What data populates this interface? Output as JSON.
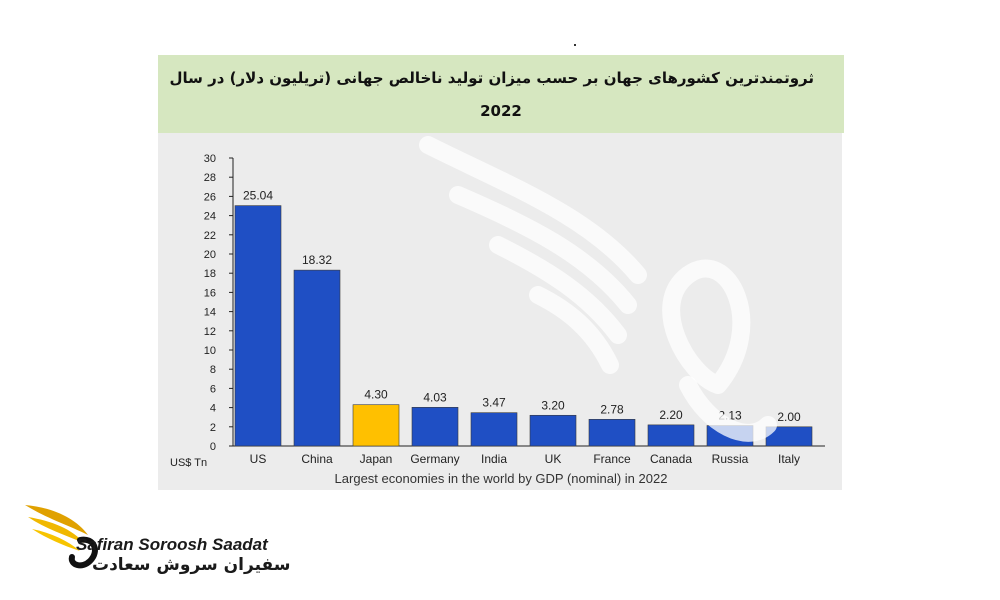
{
  "chart_data": {
    "type": "bar",
    "title": "ثروتمندترین کشورهای جهان بر حسب میزان تولید ناخالص جهانی (تریلیون دلار) در سال",
    "title_year": "2022",
    "caption": "Largest economies in the world by GDP (nominal) in 2022",
    "unit_label": "US$ Tn",
    "categories": [
      "US",
      "China",
      "Japan",
      "Germany",
      "India",
      "UK",
      "France",
      "Canada",
      "Russia",
      "Italy"
    ],
    "values": [
      25.04,
      18.32,
      4.3,
      4.03,
      3.47,
      3.2,
      2.78,
      2.2,
      2.13,
      2.0
    ],
    "value_labels": [
      "25.04",
      "18.32",
      "4.30",
      "4.03",
      "3.47",
      "3.20",
      "2.78",
      "2.20",
      "2.13",
      "2.00"
    ],
    "highlight_category": "Japan",
    "yticks": [
      0,
      2,
      4,
      6,
      8,
      10,
      12,
      14,
      16,
      18,
      20,
      22,
      24,
      26,
      28,
      30
    ],
    "ylim": [
      0,
      30
    ],
    "grid": false,
    "colors": {
      "bar": "#1f4fc4",
      "highlight": "#ffc000",
      "title_band": "#d6e7c0",
      "plot_bg": "#ececec"
    }
  },
  "brand": {
    "name_en": "Safiran Soroosh Saadat",
    "name_fa": "سفیران سروش سعادت"
  }
}
